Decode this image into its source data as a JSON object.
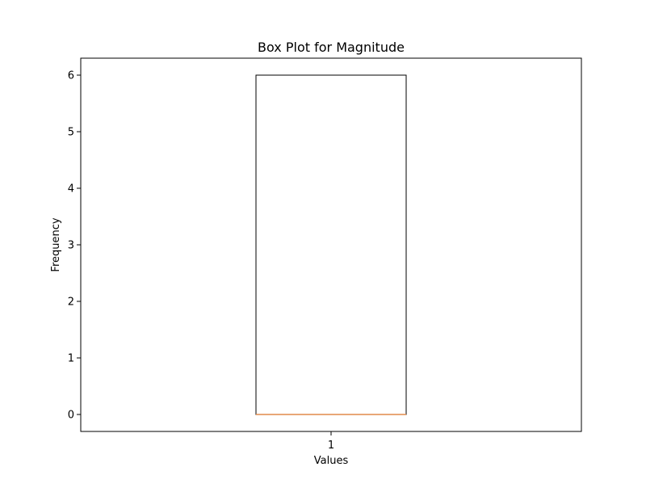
{
  "chart_data": {
    "type": "box",
    "title": "Box Plot for Magnitude",
    "xlabel": "Values",
    "ylabel": "Frequency",
    "categories": [
      "1"
    ],
    "boxes": [
      {
        "category": "1",
        "min": 0,
        "q1": 0,
        "median": 0,
        "q3": 6,
        "max": 6
      }
    ],
    "ylim": [
      -0.3,
      6.3
    ],
    "yticks": [
      0,
      1,
      2,
      3,
      4,
      5,
      6
    ],
    "grid": false,
    "colors": {
      "box_edge": "#000000",
      "median": "#e08a4a",
      "axes": "#000000"
    }
  }
}
